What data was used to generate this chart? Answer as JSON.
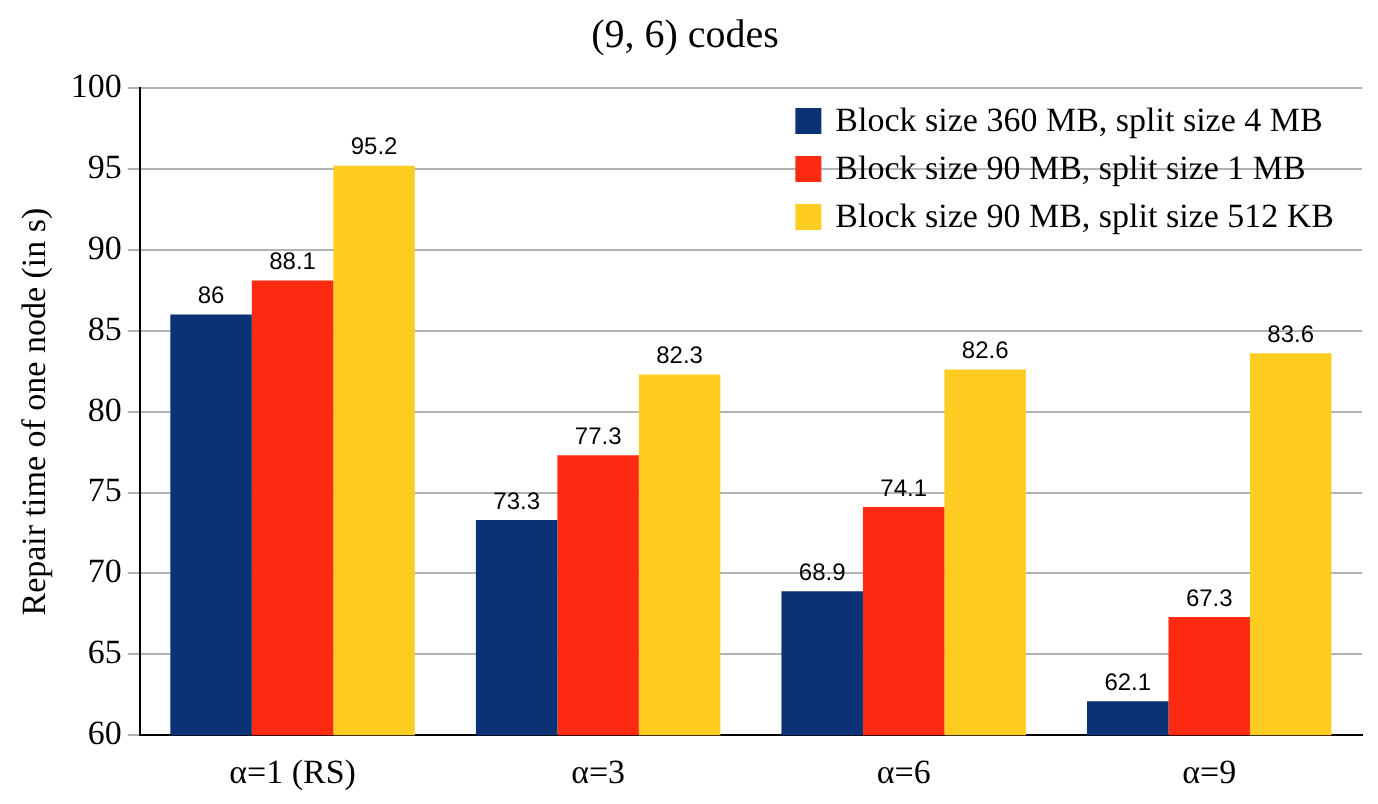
{
  "chart_data": {
    "type": "bar",
    "title": "(9, 6) codes",
    "ylabel": "Repair time of one node (in s)",
    "categories": [
      "α=1 (RS)",
      "α=3",
      "α=6",
      "α=9"
    ],
    "series": [
      {
        "name": "Block size 360 MB, split size 4 MB",
        "color": "#0a3274",
        "values": [
          86,
          73.3,
          68.9,
          62.1
        ]
      },
      {
        "name": "Block size 90 MB, split size 1 MB",
        "color": "#ff2a12",
        "values": [
          88.1,
          77.3,
          74.1,
          67.3
        ]
      },
      {
        "name": "Block size 90 MB, split size 512 KB",
        "color": "#ffcc22",
        "values": [
          95.2,
          82.3,
          82.6,
          83.6
        ]
      }
    ],
    "ylim": [
      60,
      100
    ],
    "yticks": [
      60,
      65,
      70,
      75,
      80,
      85,
      90,
      95,
      100
    ],
    "grid": "y",
    "legend": "top right",
    "data_labels": true
  }
}
